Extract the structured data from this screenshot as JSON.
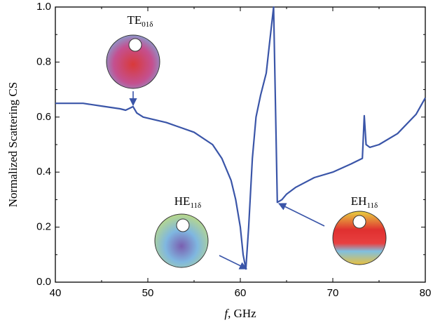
{
  "chart_data": {
    "type": "line",
    "xlabel": {
      "italic": "f",
      "rest": ", GHz"
    },
    "ylabel": "Normalized Scattering CS",
    "xlim": [
      40,
      80
    ],
    "ylim": [
      0,
      1.0
    ],
    "xticks": [
      40,
      50,
      60,
      70,
      80
    ],
    "yticks": [
      {
        "value": 0,
        "label": "0.0"
      },
      {
        "value": 0.2,
        "label": "0.2"
      },
      {
        "value": 0.4,
        "label": "0.4"
      },
      {
        "value": 0.6,
        "label": "0.6"
      },
      {
        "value": 0.8,
        "label": "0.8"
      },
      {
        "value": 1.0,
        "label": "1.0"
      }
    ],
    "series": [
      {
        "color": "#3a55a8",
        "x": [
          40,
          43,
          45,
          47,
          47.6,
          48.4,
          48.8,
          49.5,
          52,
          55,
          57,
          58,
          59,
          59.5,
          60,
          60.3,
          60.6,
          60.9,
          61.3,
          61.7,
          62.2,
          62.8,
          63.2,
          63.6,
          64.0,
          64.5,
          65,
          66,
          68,
          70,
          72,
          73.2,
          73.4,
          73.6,
          74,
          75,
          77,
          79,
          80
        ],
        "values": [
          0.65,
          0.65,
          0.64,
          0.63,
          0.625,
          0.638,
          0.615,
          0.6,
          0.58,
          0.545,
          0.5,
          0.45,
          0.37,
          0.3,
          0.2,
          0.1,
          0.048,
          0.2,
          0.45,
          0.6,
          0.68,
          0.76,
          0.88,
          1.0,
          0.29,
          0.3,
          0.32,
          0.345,
          0.38,
          0.4,
          0.43,
          0.45,
          0.605,
          0.5,
          0.49,
          0.5,
          0.54,
          0.61,
          0.67
        ]
      }
    ],
    "annotations": [
      {
        "main": "TE",
        "sub": "01δ"
      },
      {
        "main": "HE",
        "sub": "11δ"
      },
      {
        "main": "EH",
        "sub": "11δ"
      }
    ]
  }
}
